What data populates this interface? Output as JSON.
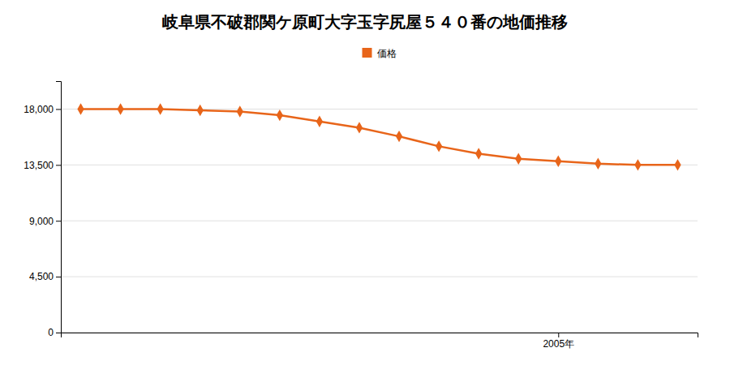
{
  "chart_data": {
    "type": "line",
    "title": "岐阜県不破郡関ケ原町大字玉字尻屋５４０番の地価推移",
    "x": [
      1993,
      1994,
      1995,
      1996,
      1997,
      1998,
      1999,
      2000,
      2001,
      2002,
      2003,
      2004,
      2005,
      2006,
      2007,
      2008
    ],
    "series": [
      {
        "name": "価格",
        "color": "#e8651a",
        "marker": "diamond",
        "values": [
          18000,
          18000,
          18000,
          17900,
          17800,
          17500,
          17000,
          16500,
          15800,
          15000,
          14400,
          14000,
          13800,
          13600,
          13500,
          13500
        ]
      }
    ],
    "xlim": [
      1992.5,
      2008.5
    ],
    "xticks": [
      {
        "value": 2005,
        "label": "2005年"
      }
    ],
    "ylim": [
      0,
      20250
    ],
    "yticks": [
      0,
      {
        "value": 4500,
        "label": "4,500"
      },
      {
        "value": 9000,
        "label": "9,000"
      },
      {
        "value": 13500,
        "label": "13,500"
      },
      {
        "value": 18000,
        "label": "18,000"
      }
    ],
    "grid": true,
    "legend": "top"
  }
}
